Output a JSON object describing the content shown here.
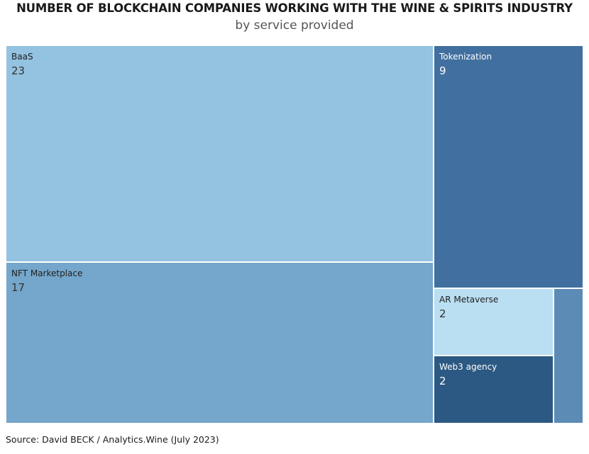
{
  "chart_data": {
    "type": "treemap",
    "title": "NUMBER OF BLOCKCHAIN COMPANIES WORKING WITH THE WINE & SPIRITS INDUSTRY",
    "subtitle": "by service provided",
    "categories": [
      "BaaS",
      "NFT Marketplace",
      "Tokenization",
      "AR Metaverse",
      "Web3 agency",
      ""
    ],
    "values": [
      23,
      17,
      9,
      2,
      2,
      1
    ],
    "colors": [
      "#94c2e1",
      "#75a6cb",
      "#416f9f",
      "#badef2",
      "#2c5983",
      "#5c8bb6"
    ],
    "legend": "none",
    "source": "Source: David BECK / Analytics.Wine (July 2023)"
  }
}
